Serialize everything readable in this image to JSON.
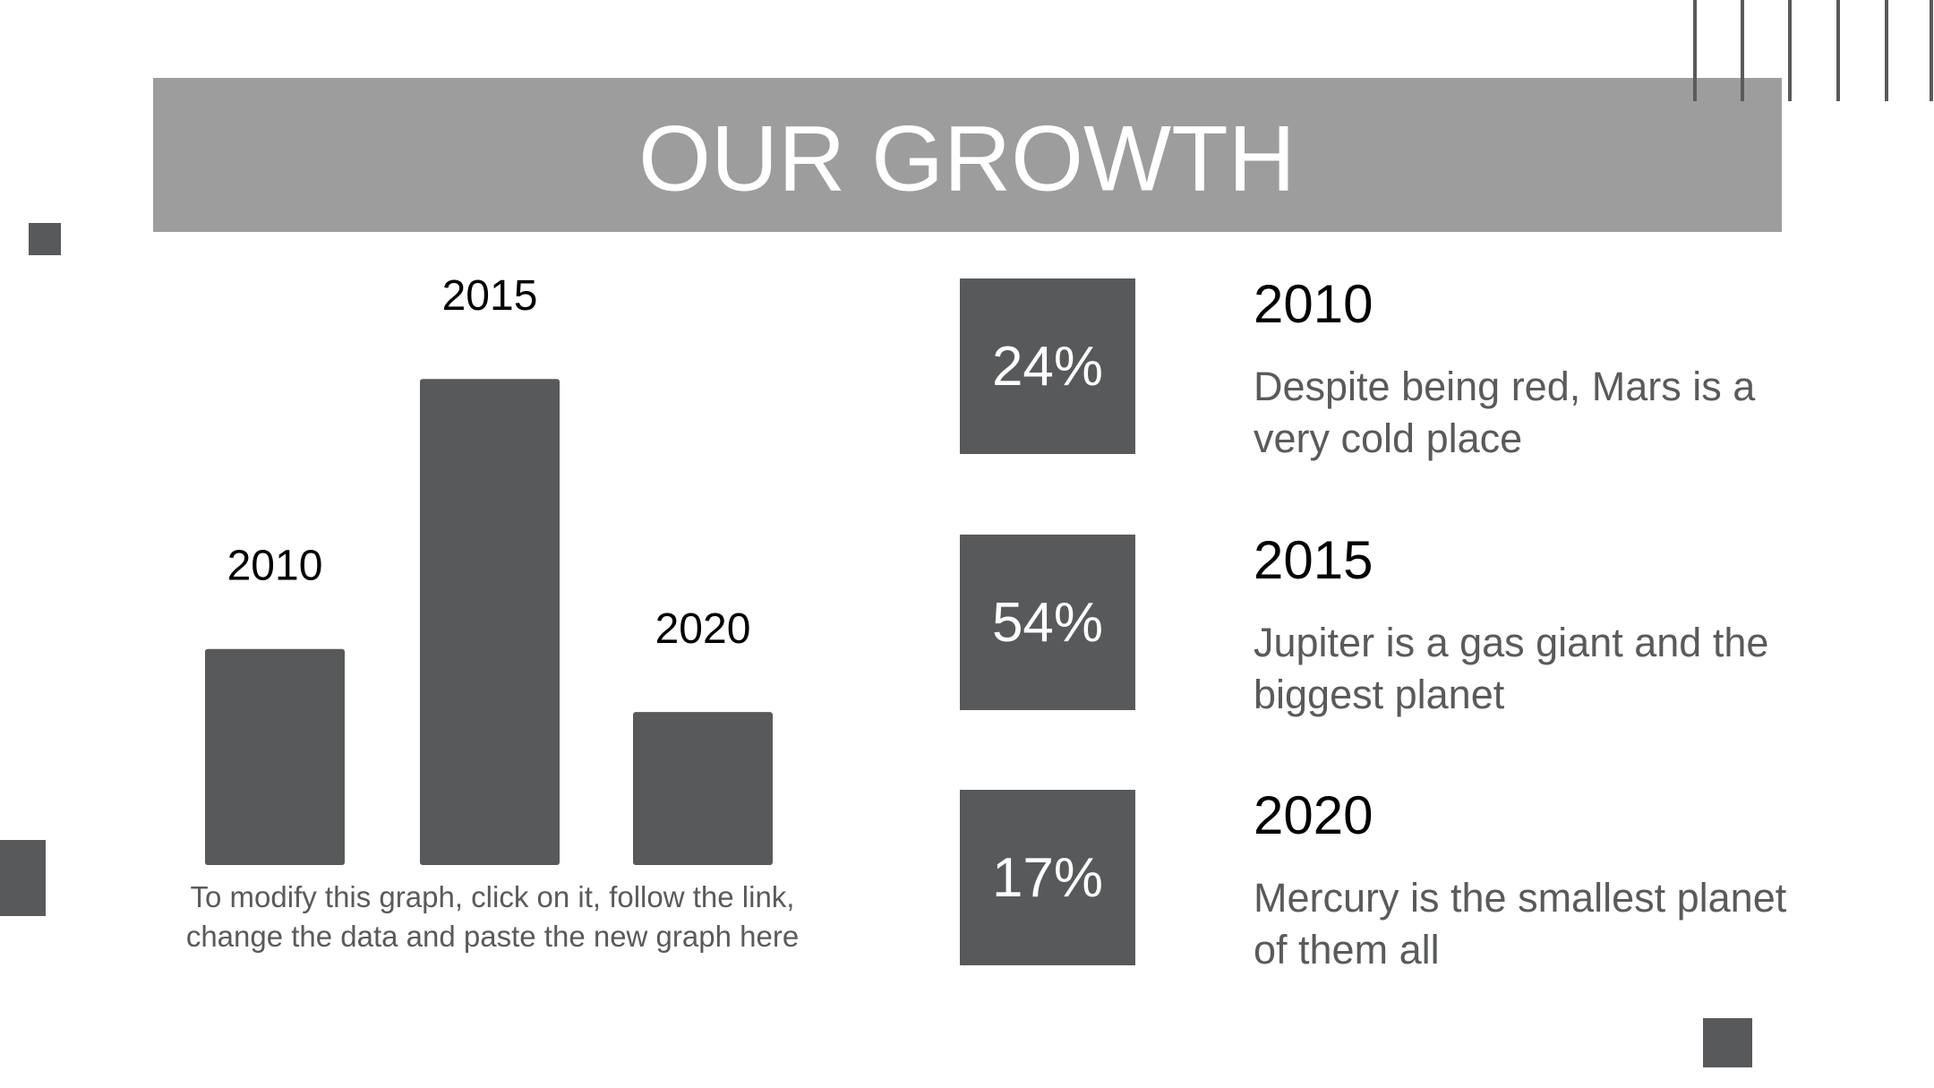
{
  "title": "OUR GROWTH",
  "chart_data": {
    "type": "bar",
    "categories": [
      "2010",
      "2015",
      "2020"
    ],
    "values": [
      24,
      54,
      17
    ],
    "color": "#58595b",
    "note": "To modify this graph, click on it, follow the link, change the data and paste the new graph here"
  },
  "items": [
    {
      "percent": "24%",
      "year": "2010",
      "text": "Despite being red, Mars is a very cold place"
    },
    {
      "percent": "54%",
      "year": "2015",
      "text": "Jupiter is a gas giant and the biggest planet"
    },
    {
      "percent": "17%",
      "year": "2020",
      "text": "Mercury is the smallest planet of them all"
    }
  ]
}
